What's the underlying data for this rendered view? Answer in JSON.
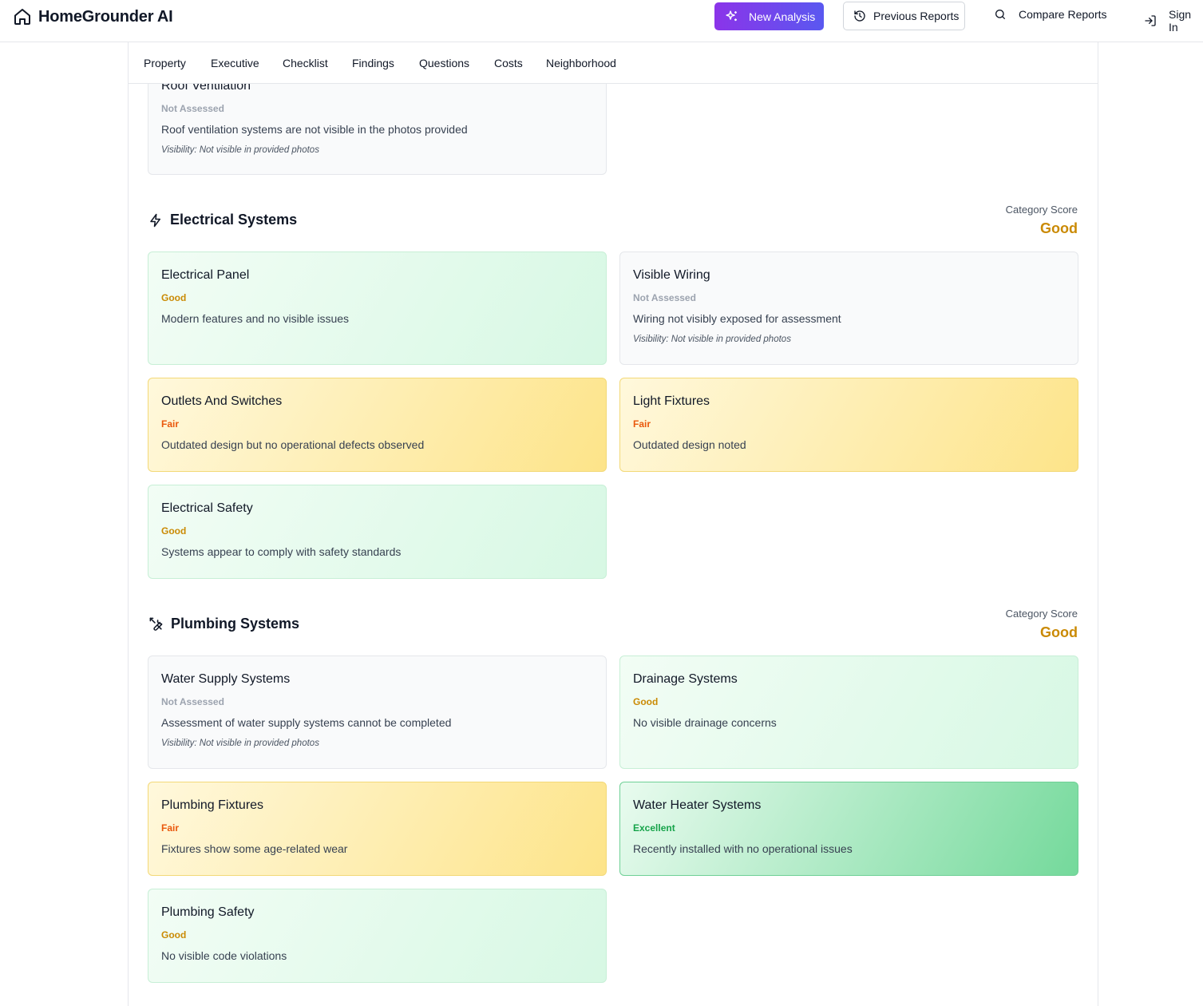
{
  "header": {
    "brand": "HomeGrounder AI",
    "new_analysis": "New Analysis",
    "previous_reports": "Previous Reports",
    "compare_reports": "Compare Reports",
    "sign_in": "Sign In",
    "accent_gradient": [
      "#8b34e9",
      "#5a58f0"
    ]
  },
  "tabs": [
    "Property",
    "Executive",
    "Checklist",
    "Findings",
    "Questions",
    "Costs",
    "Neighborhood"
  ],
  "roof_card": {
    "title": "Roof Ventilation",
    "rating": "Not Assessed",
    "description": "Roof ventilation systems are not visible in the photos provided",
    "visibility": "Visibility: Not visible in provided photos"
  },
  "electrical": {
    "title": "Electrical Systems",
    "icon": "bolt-icon",
    "score_label": "Category Score",
    "score": "Good",
    "items": [
      {
        "title": "Electrical Panel",
        "rating": "Good",
        "description": "Modern features and no visible issues",
        "visibility": ""
      },
      {
        "title": "Visible Wiring",
        "rating": "Not Assessed",
        "description": "Wiring not visibly exposed for assessment",
        "visibility": "Visibility: Not visible in provided photos"
      },
      {
        "title": "Outlets And Switches",
        "rating": "Fair",
        "description": "Outdated design but no operational defects observed",
        "visibility": ""
      },
      {
        "title": "Light Fixtures",
        "rating": "Fair",
        "description": "Outdated design noted",
        "visibility": ""
      },
      {
        "title": "Electrical Safety",
        "rating": "Good",
        "description": "Systems appear to comply with safety standards",
        "visibility": ""
      }
    ]
  },
  "plumbing": {
    "title": "Plumbing Systems",
    "icon": "wrench-icon",
    "score_label": "Category Score",
    "score": "Good",
    "items": [
      {
        "title": "Water Supply Systems",
        "rating": "Not Assessed",
        "description": "Assessment of water supply systems cannot be completed",
        "visibility": "Visibility: Not visible in provided photos"
      },
      {
        "title": "Drainage Systems",
        "rating": "Good",
        "description": "No visible drainage concerns",
        "visibility": ""
      },
      {
        "title": "Plumbing Fixtures",
        "rating": "Fair",
        "description": "Fixtures show some age-related wear",
        "visibility": ""
      },
      {
        "title": "Water Heater Systems",
        "rating": "Excellent",
        "description": "Recently installed with no operational issues",
        "visibility": ""
      },
      {
        "title": "Plumbing Safety",
        "rating": "Good",
        "description": "No visible code violations",
        "visibility": ""
      }
    ]
  },
  "rating_colors": {
    "Not Assessed": "#9ca3af",
    "Good": "#ca8a04",
    "Fair": "#ea580c",
    "Excellent": "#16a34a"
  }
}
